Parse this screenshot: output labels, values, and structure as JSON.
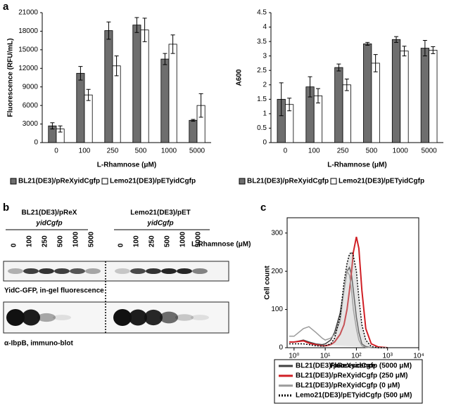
{
  "panels": [
    "a",
    "b",
    "c"
  ],
  "gel": {
    "group_titles": [
      "BL21(DE3)/pReX",
      "Lemo21(DE3)/pET"
    ],
    "group_subtitles": [
      "yidCgfp",
      "yidCgfp"
    ],
    "lanes": [
      "0",
      "100",
      "250",
      "500",
      "1000",
      "5000"
    ],
    "axis_label": "L-Rhamnose (μM)",
    "captions": [
      "YidC-GFP, in-gel fluorescence",
      "α-IbpB, immuno-blot"
    ]
  },
  "chart_data": [
    {
      "type": "bar",
      "ylabel": "Fluorescence (RFU/mL)",
      "xlabel": "L-Rhamnose (μM)",
      "categories": [
        "0",
        "100",
        "250",
        "500",
        "1000",
        "5000"
      ],
      "ylim": [
        0,
        21000
      ],
      "yticks": [
        0,
        3000,
        6000,
        9000,
        12000,
        15000,
        18000,
        21000
      ],
      "series": [
        {
          "name": "BL21(DE3)/pReXyidCgfp",
          "color": "#6e6e6e",
          "values": [
            2700,
            11200,
            18100,
            19000,
            13500,
            3600
          ],
          "errors": [
            500,
            1100,
            1400,
            1200,
            900,
            150
          ]
        },
        {
          "name": "Lemo21(DE3)/pETyidCgfp",
          "color": "#ffffff",
          "values": [
            2200,
            7700,
            12400,
            18200,
            15900,
            6000
          ],
          "errors": [
            500,
            900,
            1600,
            1900,
            1500,
            1900
          ]
        }
      ]
    },
    {
      "type": "bar",
      "ylabel": "A600",
      "xlabel": "L-Rhamnose (μM)",
      "categories": [
        "0",
        "100",
        "250",
        "500",
        "1000",
        "5000"
      ],
      "ylim": [
        0,
        4.5
      ],
      "yticks": [
        0,
        0.5,
        1,
        1.5,
        2,
        2.5,
        3,
        3.5,
        4,
        4.5
      ],
      "series": [
        {
          "name": "BL21(DE3)/pReXyidCgfp",
          "color": "#6e6e6e",
          "values": [
            1.5,
            1.93,
            2.6,
            3.42,
            3.57,
            3.27
          ],
          "errors": [
            0.57,
            0.35,
            0.12,
            0.05,
            0.1,
            0.27
          ]
        },
        {
          "name": "Lemo21(DE3)/pETyidCgfp",
          "color": "#ffffff",
          "values": [
            1.32,
            1.62,
            2.0,
            2.75,
            3.17,
            3.2
          ],
          "errors": [
            0.22,
            0.25,
            0.2,
            0.3,
            0.17,
            0.12
          ]
        }
      ]
    },
    {
      "type": "line",
      "ylabel": "Cell count",
      "xlabel": "Fluorescence",
      "log_x": true,
      "xlim": [
        0.6,
        10000
      ],
      "xticks": [
        {
          "value": 1,
          "label": "10⁰"
        },
        {
          "value": 10,
          "label": "10¹"
        },
        {
          "value": 100,
          "label": "10²"
        },
        {
          "value": 1000,
          "label": "10³"
        },
        {
          "value": 10000,
          "label": "10⁴"
        }
      ],
      "ylim": [
        0,
        340
      ],
      "yticks": [
        0,
        100,
        200,
        300
      ],
      "x": [
        0.7,
        1,
        2,
        3,
        5,
        8,
        10,
        15,
        20,
        30,
        40,
        50,
        60,
        70,
        80,
        100,
        120,
        150,
        200,
        300,
        500,
        1000
      ],
      "series": [
        {
          "name": "BL21(DE3)/pReXyidCgfp (5000 μM)",
          "color": "#404040",
          "values": [
            15,
            15,
            20,
            15,
            10,
            8,
            10,
            20,
            40,
            90,
            150,
            200,
            210,
            190,
            150,
            80,
            40,
            10,
            3,
            0,
            0,
            0
          ]
        },
        {
          "name": "BL21(DE3)/pReXyidCgfp (250 μM)",
          "color": "#d01f25",
          "values": [
            15,
            15,
            18,
            12,
            8,
            5,
            5,
            8,
            15,
            35,
            60,
            100,
            150,
            200,
            250,
            290,
            260,
            150,
            50,
            10,
            2,
            0
          ]
        },
        {
          "name": "BL21(DE3)/pReXyidCgfp (0 μM)",
          "color": "#9a9a9a",
          "values": [
            30,
            30,
            50,
            55,
            40,
            25,
            20,
            25,
            35,
            70,
            150,
            200,
            190,
            150,
            100,
            50,
            20,
            5,
            1,
            0,
            0,
            0
          ]
        },
        {
          "name": "Lemo21(DE3)/pETyidCgfp (500 μM)",
          "color": "#000000",
          "style": "dotted",
          "values": [
            10,
            10,
            10,
            8,
            5,
            4,
            5,
            10,
            25,
            80,
            170,
            220,
            245,
            250,
            240,
            200,
            130,
            60,
            20,
            3,
            0,
            0
          ]
        }
      ]
    }
  ]
}
